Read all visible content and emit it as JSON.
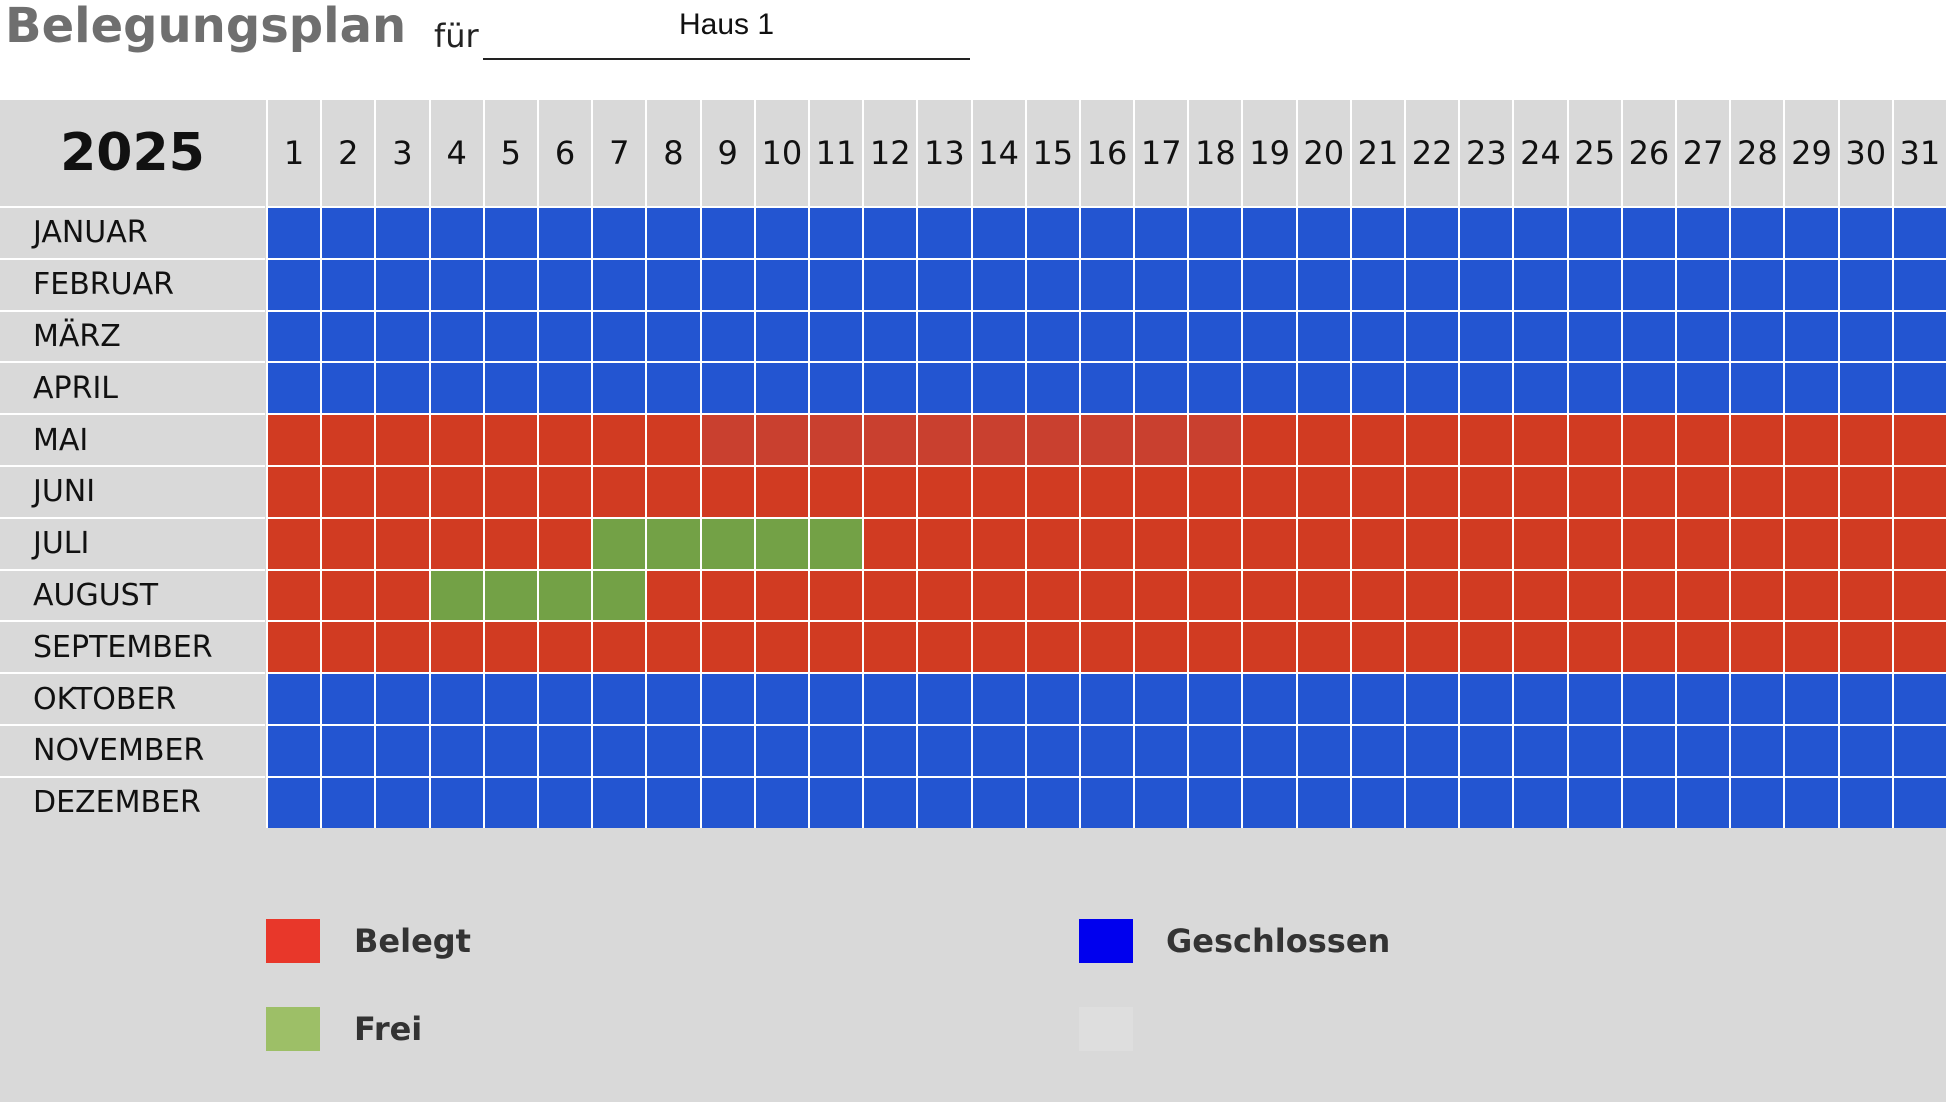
{
  "header": {
    "title": "Belegungsplan",
    "fuer_label": "für",
    "object_value": "Haus 1"
  },
  "calendar": {
    "year": "2025",
    "days": [
      "1",
      "2",
      "3",
      "4",
      "5",
      "6",
      "7",
      "8",
      "9",
      "10",
      "11",
      "12",
      "13",
      "14",
      "15",
      "16",
      "17",
      "18",
      "19",
      "20",
      "21",
      "22",
      "23",
      "24",
      "25",
      "26",
      "27",
      "28",
      "29",
      "30",
      "31"
    ],
    "months": [
      "JANUAR",
      "FEBRUAR",
      "MÄRZ",
      "APRIL",
      "MAI",
      "JUNI",
      "JULI",
      "AUGUST",
      "SEPTEMBER",
      "OKTOBER",
      "NOVEMBER",
      "DEZEMBER"
    ],
    "status_rows": [
      "GGGGGGGGGGGGGGGGGGGGGGGGGGGGGGG",
      "GGGGGGGGGGGGGGGGGGGGGGGGGGGGGGG",
      "GGGGGGGGGGGGGGGGGGGGGGGGGGGGGGG",
      "GGGGGGGGGGGGGGGGGGGGGGGGGGGGGGG",
      "BBBBBBBBBBBBBBBBBBBBBBBBBBBBBBB",
      "BBBBBBBBBBBBBBBBBBBBBBBBBBBBBBB",
      "BBBBBBFFFFFBBBBBBBBBBBBBBBBBBBB",
      "BBBFFFFBBBBBBBBBBBBBBBBBBBBBBBB",
      "BBBBBBBBBBBBBBBBBBBBBBBBBBBBBBB",
      "GGGGGGGGGGGGGGGGGGGGGGGGGGGGGGG",
      "GGGGGGGGGGGGGGGGGGGGGGGGGGGGGGG",
      "GGGGGGGGGGGGGGGGGGGGGGGGGGGGGGG"
    ],
    "status_colors": {
      "B": "#d13b22",
      "G": "#2355d1",
      "F": "#73a146"
    }
  },
  "legend": {
    "belegt_label": "Belegt",
    "belegt_color": "#e8372a",
    "frei_label": "Frei",
    "frei_color": "#9dbf67",
    "geschlossen_label": "Geschlossen",
    "geschlossen_color": "#0000ee",
    "empty_color": "#dedede"
  }
}
